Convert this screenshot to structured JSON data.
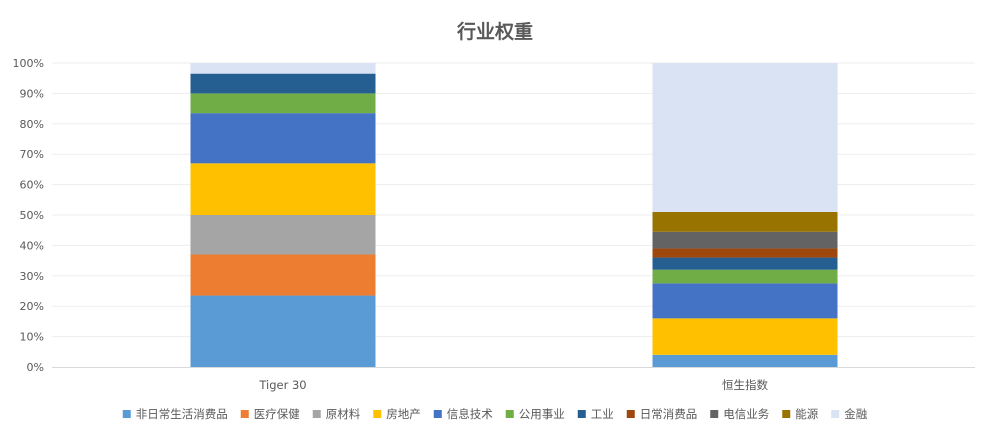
{
  "chart_data": {
    "type": "bar",
    "stacked": true,
    "title": "行业权重",
    "xlabel": "",
    "ylabel": "",
    "ylim": [
      0,
      1
    ],
    "y_ticks": [
      "0%",
      "10%",
      "20%",
      "30%",
      "40%",
      "50%",
      "60%",
      "70%",
      "80%",
      "90%",
      "100%"
    ],
    "grid": true,
    "legend_position": "bottom",
    "categories": [
      "Tiger 30",
      "恒生指数"
    ],
    "series": [
      {
        "name": "非日常生活消费品",
        "color": "#5b9bd5",
        "values": [
          0.235,
          0.04
        ]
      },
      {
        "name": "医疗保健",
        "color": "#ed7d31",
        "values": [
          0.135,
          0.0
        ]
      },
      {
        "name": "原材料",
        "color": "#a5a5a5",
        "values": [
          0.13,
          0.0
        ]
      },
      {
        "name": "房地产",
        "color": "#ffc000",
        "values": [
          0.17,
          0.12
        ]
      },
      {
        "name": "信息技术",
        "color": "#4472c4",
        "values": [
          0.165,
          0.115
        ]
      },
      {
        "name": "公用事业",
        "color": "#70ad47",
        "values": [
          0.065,
          0.045
        ]
      },
      {
        "name": "工业",
        "color": "#255e91",
        "values": [
          0.065,
          0.04
        ]
      },
      {
        "name": "日常消费品",
        "color": "#9e480e",
        "values": [
          0.0,
          0.03
        ]
      },
      {
        "name": "电信业务",
        "color": "#636363",
        "values": [
          0.0,
          0.055
        ]
      },
      {
        "name": "能源",
        "color": "#997300",
        "values": [
          0.0,
          0.065
        ]
      },
      {
        "name": "金融",
        "color": "#dae3f3",
        "values": [
          0.035,
          0.49
        ]
      }
    ]
  }
}
